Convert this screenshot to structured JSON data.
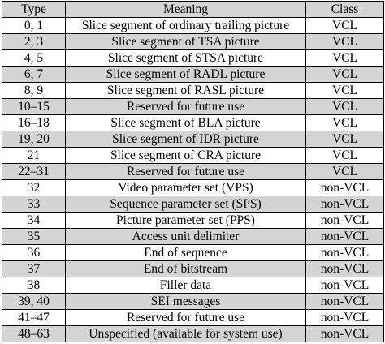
{
  "table": {
    "headers": {
      "type": "Type",
      "meaning": "Meaning",
      "class": "Class"
    },
    "rows": [
      {
        "type": "0, 1",
        "meaning": "Slice segment of ordinary trailing picture",
        "class": "VCL"
      },
      {
        "type": "2, 3",
        "meaning": "Slice segment of TSA picture",
        "class": "VCL"
      },
      {
        "type": "4, 5",
        "meaning": "Slice segment of STSA picture",
        "class": "VCL"
      },
      {
        "type": "6, 7",
        "meaning": "Slice segment of RADL picture",
        "class": "VCL"
      },
      {
        "type": "8, 9",
        "meaning": "Slice segment of RASL picture",
        "class": "VCL"
      },
      {
        "type": "10–15",
        "meaning": "Reserved for future use",
        "class": "VCL"
      },
      {
        "type": "16–18",
        "meaning": "Slice segment of BLA picture",
        "class": "VCL"
      },
      {
        "type": "19, 20",
        "meaning": "Slice segment of IDR picture",
        "class": "VCL"
      },
      {
        "type": "21",
        "meaning": "Slice segment of CRA picture",
        "class": "VCL"
      },
      {
        "type": "22–31",
        "meaning": "Reserved for future use",
        "class": "VCL"
      },
      {
        "type": "32",
        "meaning": "Video parameter set (VPS)",
        "class": "non-VCL"
      },
      {
        "type": "33",
        "meaning": "Sequence parameter set (SPS)",
        "class": "non-VCL"
      },
      {
        "type": "34",
        "meaning": "Picture parameter set (PPS)",
        "class": "non-VCL"
      },
      {
        "type": "35",
        "meaning": "Access unit delimiter",
        "class": "non-VCL"
      },
      {
        "type": "36",
        "meaning": "End of sequence",
        "class": "non-VCL"
      },
      {
        "type": "37",
        "meaning": "End of bitstream",
        "class": "non-VCL"
      },
      {
        "type": "38",
        "meaning": "Filler data",
        "class": "non-VCL"
      },
      {
        "type": "39, 40",
        "meaning": "SEI messages",
        "class": "non-VCL"
      },
      {
        "type": "41–47",
        "meaning": "Reserved for future use",
        "class": "non-VCL"
      },
      {
        "type": "48–63",
        "meaning": "Unspecified (available for system use)",
        "class": "non-VCL"
      }
    ]
  }
}
